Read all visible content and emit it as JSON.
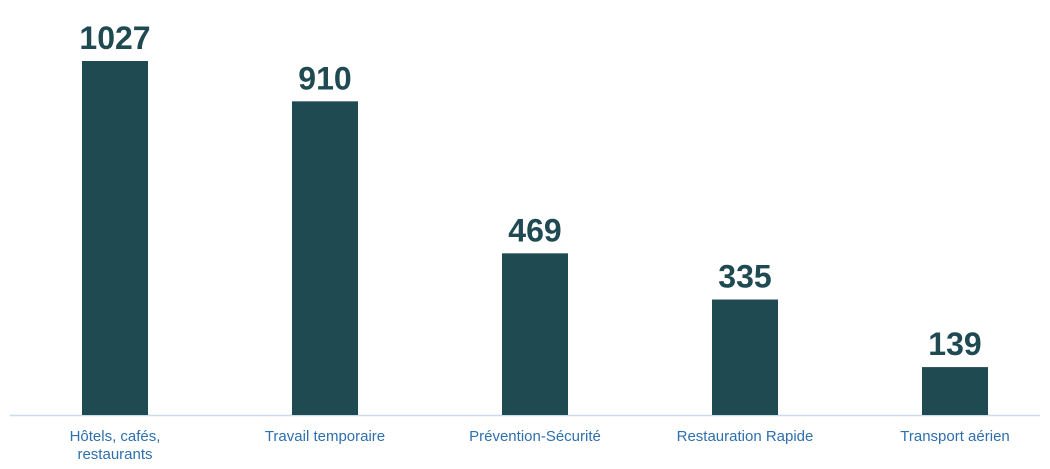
{
  "chart_data": {
    "type": "bar",
    "categories": [
      "Hôtels, cafés, restaurants",
      "Travail temporaire",
      "Prévention-Sécurité",
      "Restauration Rapide",
      "Transport aérien"
    ],
    "values": [
      1027,
      910,
      469,
      335,
      139
    ],
    "color": "#1f4a52",
    "label_color": "#2e6fad"
  }
}
